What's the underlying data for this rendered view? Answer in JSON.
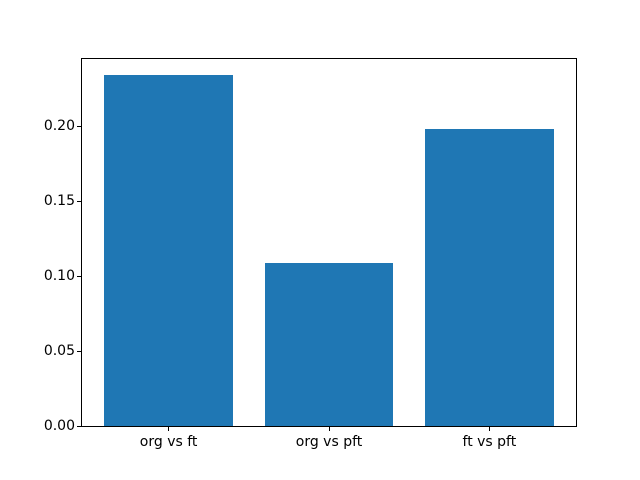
{
  "figure": {
    "background": "#ffffff",
    "frame_color": "#000000"
  },
  "chart_data": {
    "type": "bar",
    "title": "",
    "xlabel": "",
    "ylabel": "",
    "categories": [
      "org vs ft",
      "org vs pft",
      "ft vs pft"
    ],
    "values": [
      0.234,
      0.109,
      0.198
    ],
    "bar_color": "#1f77b4",
    "bar_width": 0.8,
    "positions": [
      0,
      1,
      2
    ],
    "xlim": [
      -0.54,
      2.54
    ],
    "ylim": [
      0,
      0.2447
    ],
    "yticks": [
      0,
      0.05,
      0.1,
      0.15,
      0.2
    ],
    "ytick_labels": [
      "0.00",
      "0.05",
      "0.10",
      "0.15",
      "0.20"
    ],
    "grid": false,
    "legend": "none"
  }
}
